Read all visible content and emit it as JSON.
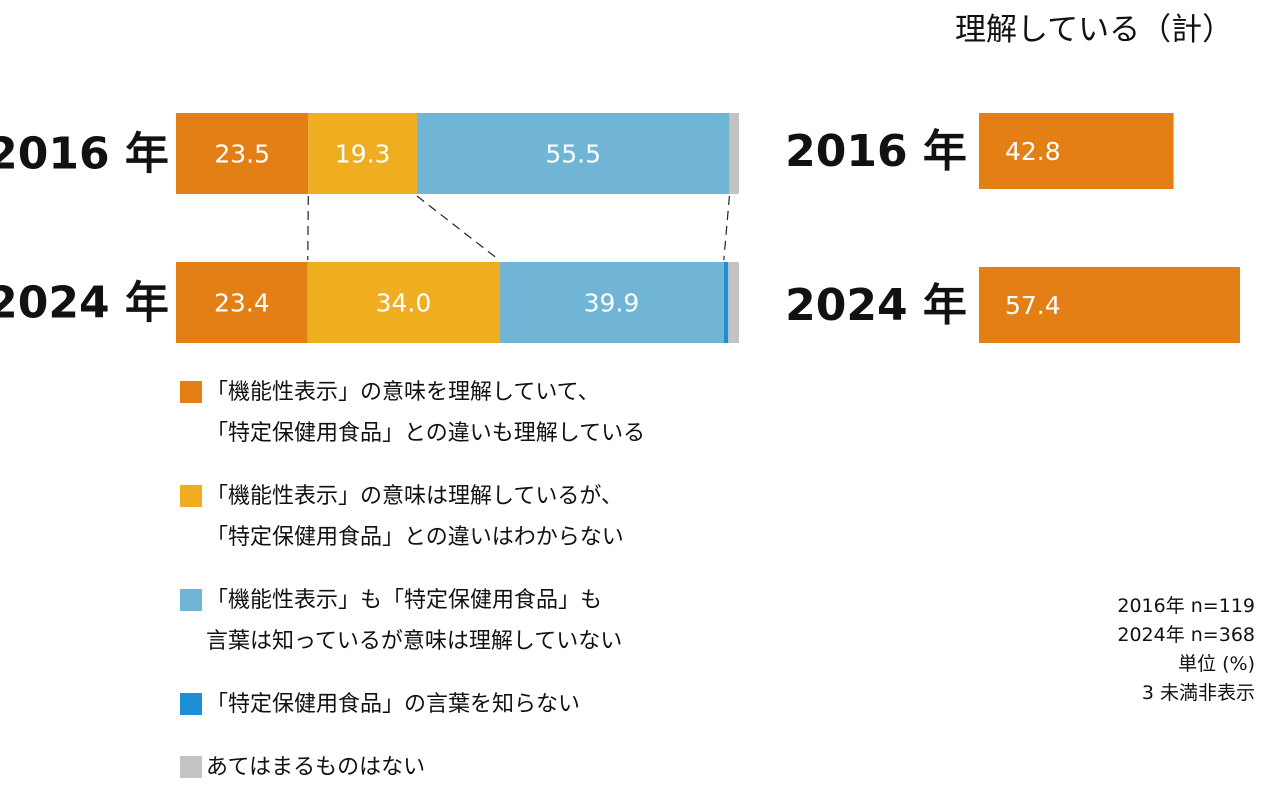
{
  "chart_data": [
    {
      "type": "bar",
      "stacked": true,
      "orientation": "horizontal",
      "categories": [
        "2016 年",
        "2024 年"
      ],
      "series": [
        {
          "name": "「機能性表示」の意味を理解していて、\n「特定保健用食品」との違いも理解している",
          "color": "#e47f15",
          "values": [
            23.5,
            23.4
          ],
          "labels": [
            "23.5",
            "23.4"
          ]
        },
        {
          "name": "「機能性表示」の意味は理解しているが、\n「特定保健用食品」との違いはわからない",
          "color": "#efae20",
          "values": [
            19.3,
            34.0
          ],
          "labels": [
            "19.3",
            "34.0"
          ]
        },
        {
          "name": "「機能性表示」も「特定保健用食品」も\n言葉は知っているが意味は理解していない",
          "color": "#70b5d6",
          "values": [
            55.5,
            39.9
          ],
          "labels": [
            "55.5",
            "39.9"
          ]
        },
        {
          "name": "「特定保健用食品」の言葉を知らない",
          "color": "#1e8fd6",
          "values": [
            0.0,
            0.8
          ],
          "labels": [
            "",
            ""
          ]
        },
        {
          "name": "あてはまるものはない",
          "color": "#c3c3c3",
          "values": [
            1.7,
            1.9
          ],
          "labels": [
            "",
            ""
          ]
        }
      ],
      "xlim": [
        0,
        100
      ]
    },
    {
      "type": "bar",
      "orientation": "horizontal",
      "title": "理解している（計）",
      "categories": [
        "2016 年",
        "2024 年"
      ],
      "values": [
        42.8,
        57.4
      ],
      "labels": [
        "42.8",
        "57.4"
      ],
      "color": "#e47f15",
      "xlim": [
        0,
        60
      ]
    }
  ],
  "notes": [
    "2016年 n=119",
    "2024年 n=368",
    "単位 (%)",
    "3 未満非表示"
  ]
}
